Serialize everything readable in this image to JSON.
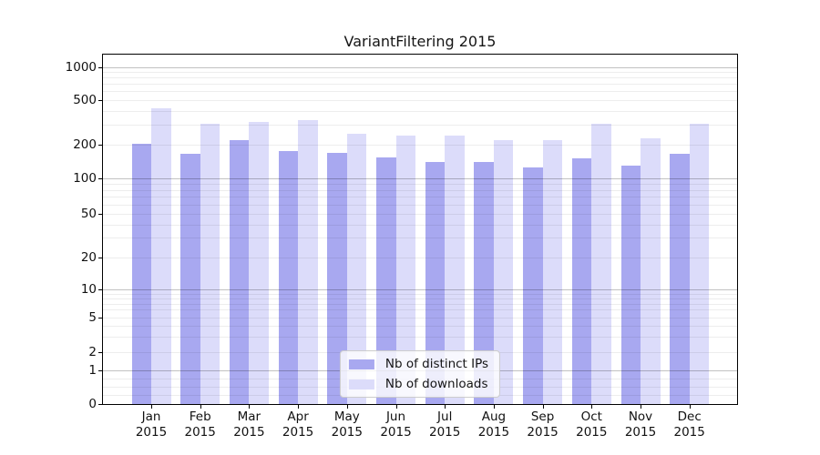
{
  "chart_data": {
    "type": "bar",
    "title": "VariantFiltering 2015",
    "yscale": "symlog",
    "grid": true,
    "categories": [
      "Jan 2015",
      "Feb 2015",
      "Mar 2015",
      "Apr 2015",
      "May 2015",
      "Jun 2015",
      "Jul 2015",
      "Aug 2015",
      "Sep 2015",
      "Oct 2015",
      "Nov 2015",
      "Dec 2015"
    ],
    "x_tick_months": [
      "Jan",
      "Feb",
      "Mar",
      "Apr",
      "May",
      "Jun",
      "Jul",
      "Aug",
      "Sep",
      "Oct",
      "Nov",
      "Dec"
    ],
    "x_tick_year": "2015",
    "y_ticks": [
      0,
      1,
      2,
      5,
      10,
      20,
      50,
      100,
      200,
      500,
      1000
    ],
    "ylim": [
      0,
      1300
    ],
    "series": [
      {
        "name": "Nb of distinct IPs",
        "color": "#a8a8f0",
        "values": [
          205,
          165,
          220,
          175,
          170,
          155,
          140,
          140,
          125,
          150,
          130,
          165
        ]
      },
      {
        "name": "Nb of downloads",
        "color": "#dcdcfa",
        "values": [
          420,
          305,
          320,
          330,
          250,
          240,
          240,
          220,
          220,
          305,
          230,
          305
        ]
      }
    ],
    "legend_position": "lower center",
    "colors": {
      "grid_major": "#c2c2c2",
      "grid_minor": "#ededed",
      "spine": "#000000",
      "background": "#ffffff",
      "text": "#111111"
    }
  }
}
